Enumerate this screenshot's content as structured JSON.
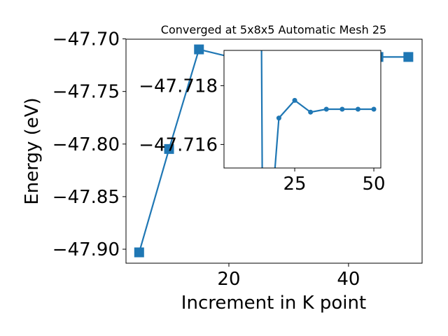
{
  "chart_data": {
    "type": "line",
    "title": "Converged at 5x8x5 Automatic Mesh 25",
    "x_label": "Increment in K point",
    "y_label": "Energy (eV)",
    "x": [
      5,
      10,
      15,
      20,
      25,
      30,
      35,
      40,
      45,
      50
    ],
    "series": [
      {
        "name": "Energy",
        "color": "#1f77b4",
        "values": [
          -47.903,
          -47.8047,
          -47.71,
          -47.7169,
          -47.7175,
          -47.7171,
          -47.7172,
          -47.7172,
          -47.7172,
          -47.7172
        ]
      }
    ],
    "xlim": [
      2.8,
      52.3
    ],
    "ylim": [
      -47.9133,
      -47.7003
    ],
    "xticks": [
      20,
      40
    ],
    "yticks": [
      {
        "value": -47.9,
        "label": "−47.90"
      },
      {
        "value": -47.85,
        "label": "−47.85"
      },
      {
        "value": -47.8,
        "label": "−47.80"
      },
      {
        "value": -47.75,
        "label": "−47.75"
      },
      {
        "value": -47.7,
        "label": "−47.70"
      }
    ],
    "inset": {
      "xlim": [
        2.65,
        52.2
      ],
      "ylim": [
        -47.7152,
        -47.7192
      ],
      "xticks": [
        25,
        50
      ],
      "yticks": [
        {
          "value": -47.716,
          "label": "−47.716"
        },
        {
          "value": -47.718,
          "label": "−47.718"
        }
      ]
    }
  }
}
